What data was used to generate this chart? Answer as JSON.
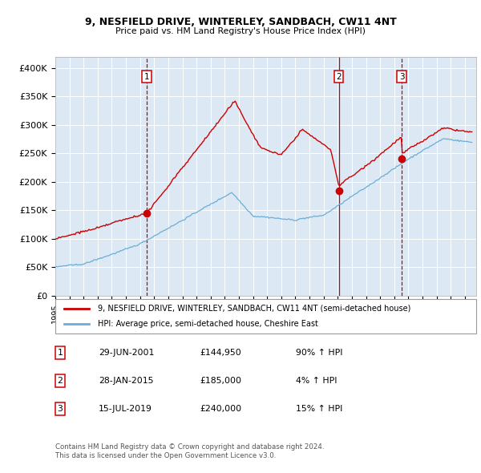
{
  "title1": "9, NESFIELD DRIVE, WINTERLEY, SANDBACH, CW11 4NT",
  "title2": "Price paid vs. HM Land Registry's House Price Index (HPI)",
  "plot_bg": "#dce9f5",
  "hpi_color": "#6aaed6",
  "price_color": "#cc0000",
  "vline_color": "#cc0000",
  "ylim": [
    0,
    420000
  ],
  "yticks": [
    0,
    50000,
    100000,
    150000,
    200000,
    250000,
    300000,
    350000,
    400000
  ],
  "ytick_labels": [
    "£0",
    "£50K",
    "£100K",
    "£150K",
    "£200K",
    "£250K",
    "£300K",
    "£350K",
    "£400K"
  ],
  "sale1": {
    "date": 2001.49,
    "price": 144950,
    "label": "1"
  },
  "sale2": {
    "date": 2015.07,
    "price": 185000,
    "label": "2"
  },
  "sale3": {
    "date": 2019.54,
    "price": 240000,
    "label": "3"
  },
  "legend_price_label": "9, NESFIELD DRIVE, WINTERLEY, SANDBACH, CW11 4NT (semi-detached house)",
  "legend_hpi_label": "HPI: Average price, semi-detached house, Cheshire East",
  "table": [
    {
      "num": "1",
      "date": "29-JUN-2001",
      "price": "£144,950",
      "change": "90% ↑ HPI"
    },
    {
      "num": "2",
      "date": "28-JAN-2015",
      "price": "£185,000",
      "change": "4% ↑ HPI"
    },
    {
      "num": "3",
      "date": "15-JUL-2019",
      "price": "£240,000",
      "change": "15% ↑ HPI"
    }
  ],
  "footnote1": "Contains HM Land Registry data © Crown copyright and database right 2024.",
  "footnote2": "This data is licensed under the Open Government Licence v3.0."
}
